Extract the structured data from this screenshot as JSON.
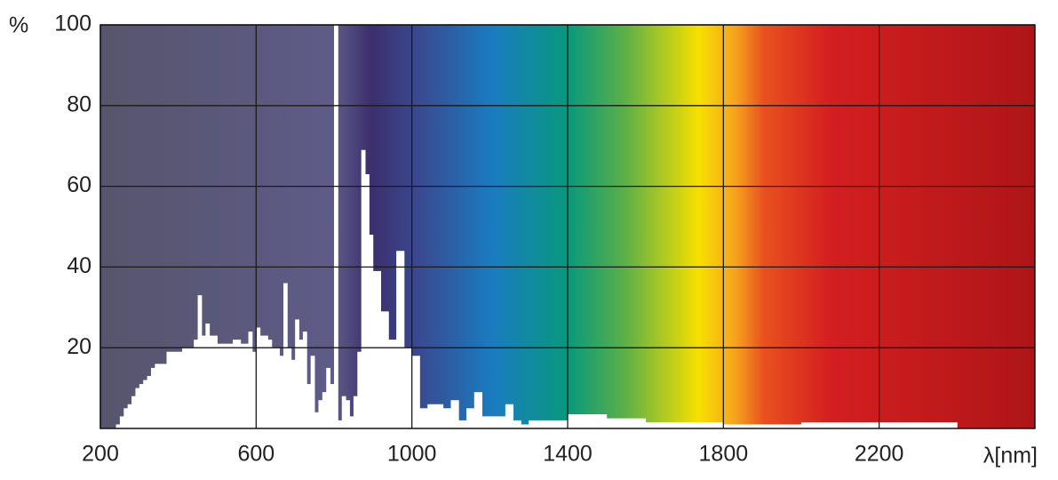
{
  "chart_data": {
    "type": "histogram",
    "y_label": "%",
    "x_label": "λ[nm]",
    "bins": [
      240,
      250,
      260,
      270,
      280,
      290,
      300,
      310,
      320,
      330,
      340,
      360,
      370,
      410,
      440,
      450,
      460,
      470,
      480,
      500,
      540,
      560,
      580,
      590,
      600,
      610,
      630,
      640,
      660,
      670,
      680,
      690,
      700,
      710,
      720,
      730,
      740,
      750,
      760,
      770,
      780,
      790,
      800,
      810,
      820,
      830,
      840,
      850,
      860,
      870,
      880,
      890,
      900,
      920,
      940,
      960,
      980,
      1000,
      1020,
      1040,
      1080,
      1100,
      1120,
      1140,
      1160,
      1180,
      1240,
      1260,
      1280,
      1300,
      1400,
      1500,
      1600,
      1800,
      2000,
      2400
    ],
    "values": [
      1,
      3,
      5,
      6,
      8,
      10,
      11,
      12,
      13,
      15,
      16,
      16,
      19,
      20,
      22,
      33,
      23,
      26,
      23,
      21,
      22,
      21,
      24,
      19,
      25,
      23,
      22,
      20,
      18,
      36,
      20,
      17,
      27,
      22,
      24,
      11,
      18,
      4,
      7,
      9,
      15,
      11,
      100,
      2,
      8,
      7,
      3,
      8,
      19,
      69,
      63,
      48,
      39,
      29,
      22,
      44,
      20,
      18,
      5,
      6,
      5,
      7,
      2,
      5,
      9,
      3,
      6,
      2,
      1,
      2,
      3.5,
      2.5,
      1.5,
      1,
      1.5
    ],
    "color": "#ffffff",
    "xlim": [
      200,
      2600
    ],
    "xticks": [
      200,
      600,
      1000,
      1400,
      1800,
      2200
    ],
    "ylim": [
      0,
      100
    ],
    "yticks": [
      20,
      40,
      60,
      80,
      100
    ],
    "grid": true
  }
}
